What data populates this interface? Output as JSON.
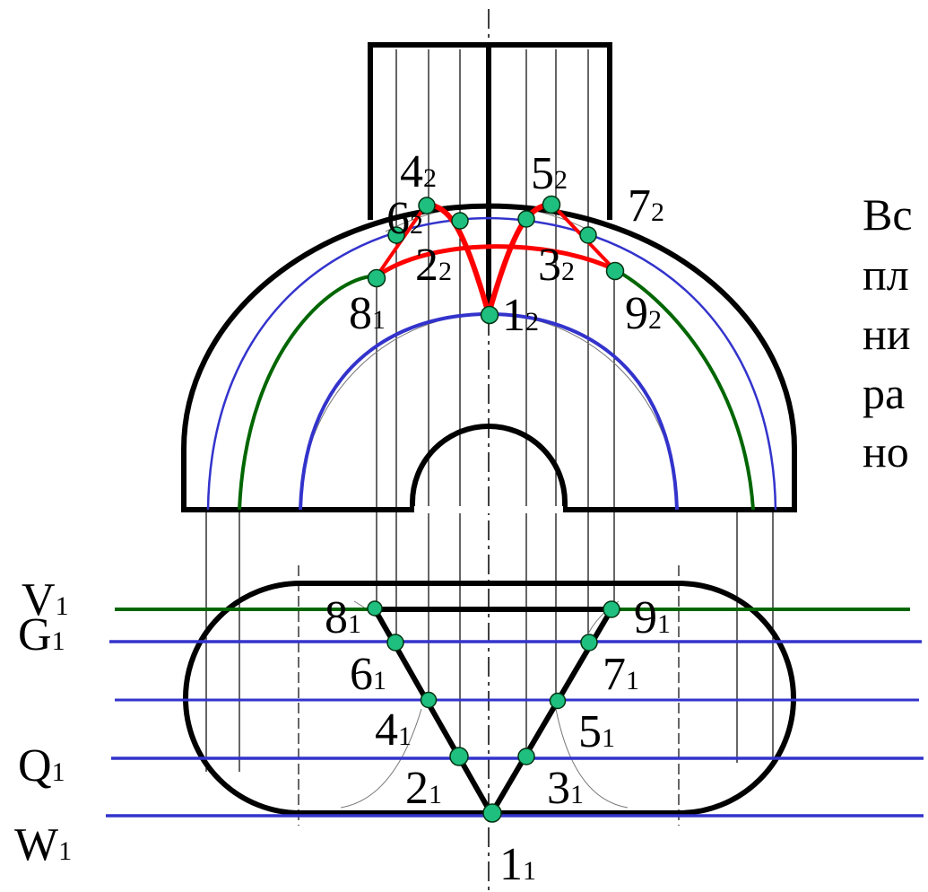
{
  "colors": {
    "outline": "#000000",
    "blue": "#3333cc",
    "green": "#006600",
    "red": "#ff0000",
    "point_fill": "#1fbf7f",
    "point_stroke": "#003311"
  },
  "side_text": [
    "Вс",
    "пл",
    "ни",
    "ра",
    "но"
  ],
  "plane_labels": {
    "V": {
      "main": "V",
      "sub": "1"
    },
    "G": {
      "main": "G",
      "sub": "1"
    },
    "Q": {
      "main": "Q",
      "sub": "1"
    },
    "W": {
      "main": "W",
      "sub": "1"
    }
  },
  "front_points": {
    "p1": {
      "main": "1",
      "sub": "2"
    },
    "p2": {
      "main": "2",
      "sub": "2"
    },
    "p3": {
      "main": "3",
      "sub": "2"
    },
    "p4": {
      "main": "4",
      "sub": "2"
    },
    "p5": {
      "main": "5",
      "sub": "2"
    },
    "p6": {
      "main": "6",
      "sub": "2"
    },
    "p7": {
      "main": "7",
      "sub": "2"
    },
    "p8": {
      "main": "8",
      "sub": "1"
    },
    "p9": {
      "main": "9",
      "sub": "2"
    }
  },
  "top_points": {
    "p1": {
      "main": "1",
      "sub": "1"
    },
    "p2": {
      "main": "2",
      "sub": "1"
    },
    "p3": {
      "main": "3",
      "sub": "1"
    },
    "p4": {
      "main": "4",
      "sub": "1"
    },
    "p5": {
      "main": "5",
      "sub": "1"
    },
    "p6": {
      "main": "6",
      "sub": "1"
    },
    "p7": {
      "main": "7",
      "sub": "1"
    },
    "p8": {
      "main": "8",
      "sub": "1"
    },
    "p9": {
      "main": "9",
      "sub": "1"
    }
  }
}
